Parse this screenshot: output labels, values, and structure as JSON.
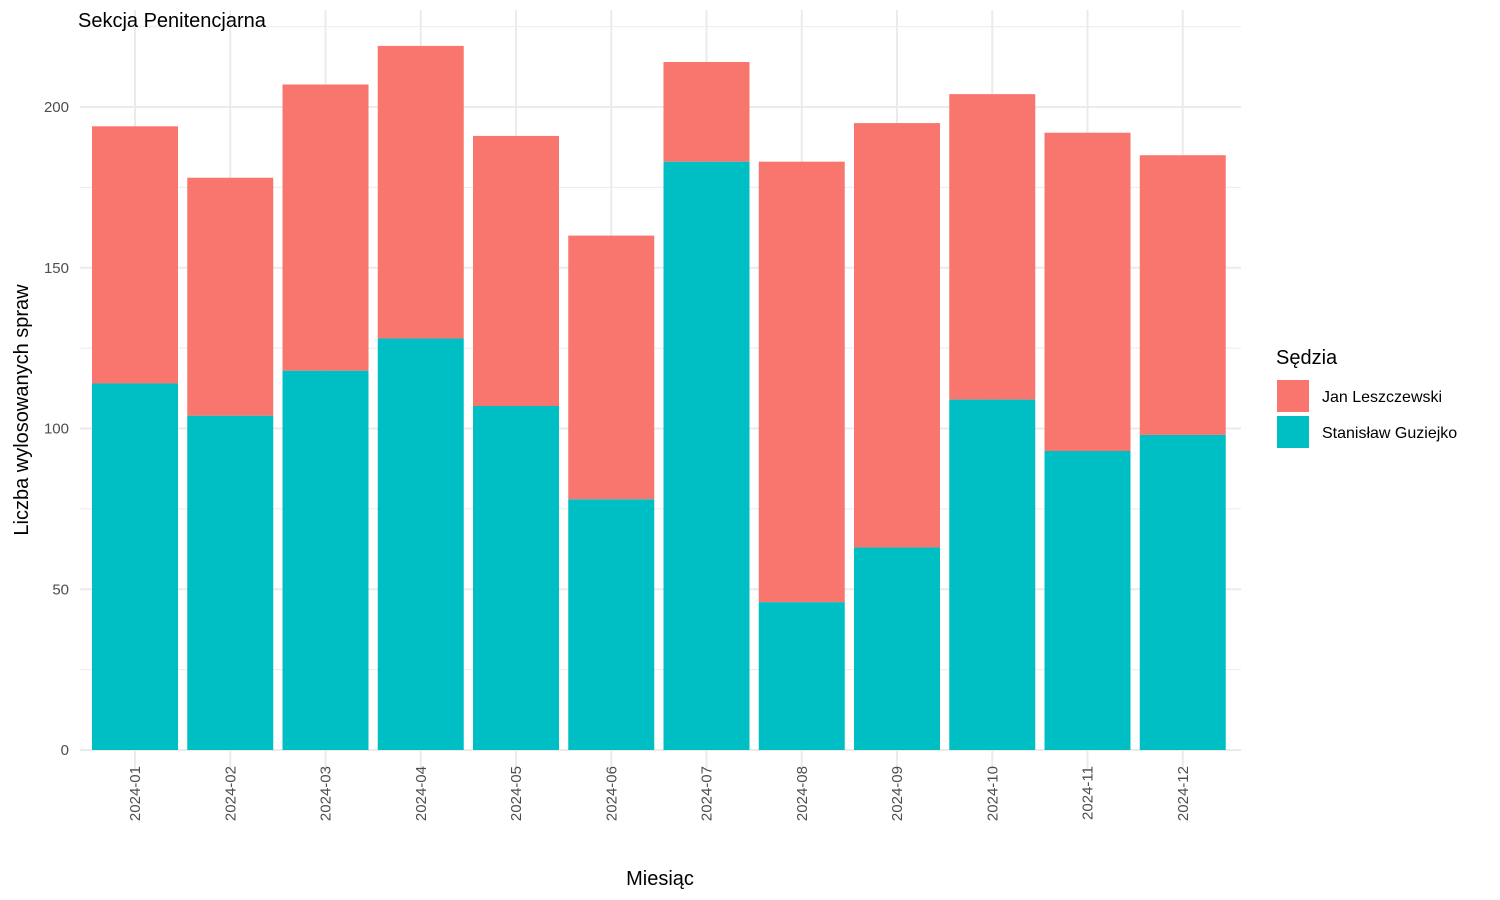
{
  "chart_data": {
    "type": "bar",
    "stacked": true,
    "title": "Sekcja Penitencjarna",
    "xlabel": "Miesiąc",
    "ylabel": "Liczba wylosowanych spraw",
    "ylim": [
      0,
      230
    ],
    "yticks": [
      0,
      50,
      100,
      150,
      200
    ],
    "grid": true,
    "legend": {
      "title": "Sędzia",
      "position": "right"
    },
    "categories": [
      "2024-01",
      "2024-02",
      "2024-03",
      "2024-04",
      "2024-05",
      "2024-06",
      "2024-07",
      "2024-08",
      "2024-09",
      "2024-10",
      "2024-11",
      "2024-12"
    ],
    "series": [
      {
        "name": "Stanisław Guziejko",
        "color": "#00BFC4",
        "values": [
          114,
          104,
          118,
          128,
          107,
          78,
          183,
          46,
          63,
          109,
          93,
          98
        ]
      },
      {
        "name": "Jan Leszczewski",
        "color": "#F8766D",
        "values": [
          80,
          74,
          89,
          91,
          84,
          82,
          31,
          137,
          132,
          95,
          99,
          87
        ]
      }
    ],
    "legend_order": [
      "Jan Leszczewski",
      "Stanisław Guziejko"
    ]
  }
}
